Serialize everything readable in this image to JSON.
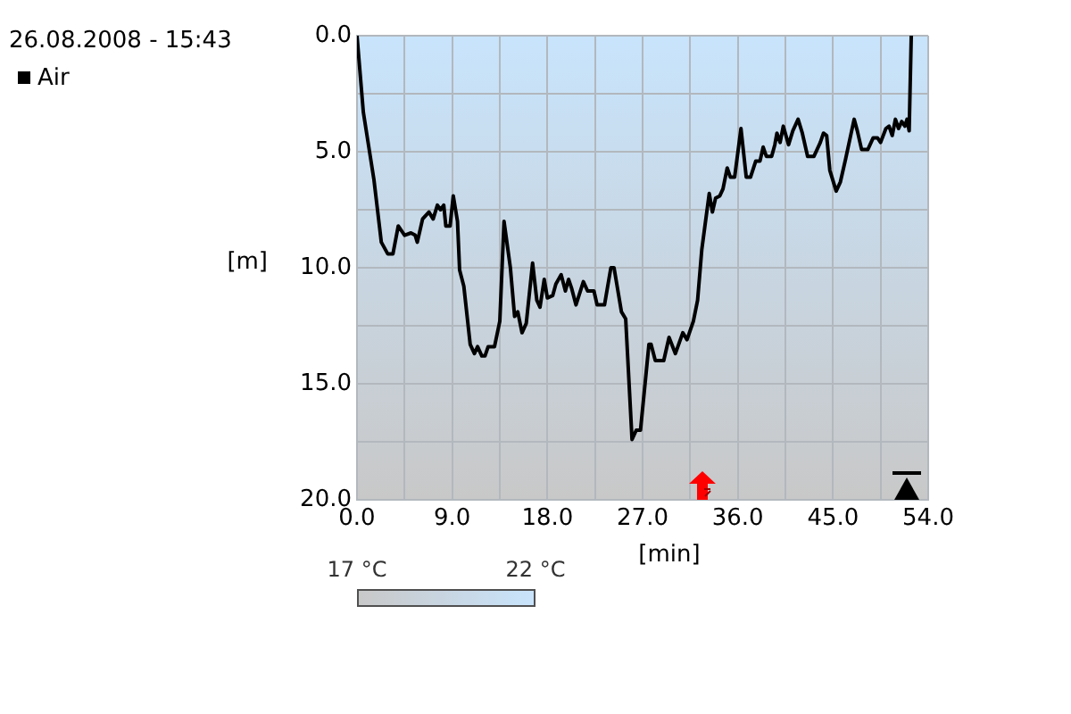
{
  "chart_data": {
    "type": "line",
    "title": "26.08.2008 - 15:43",
    "xlabel": "[min]",
    "ylabel": "[m]",
    "x": [
      0.0,
      0.6,
      1.6,
      2.3,
      2.9,
      3.4,
      3.9,
      4.5,
      5.1,
      5.5,
      5.7,
      6.2,
      6.8,
      7.2,
      7.6,
      7.9,
      8.2,
      8.4,
      8.8,
      9.1,
      9.5,
      9.7,
      10.1,
      10.7,
      11.1,
      11.4,
      11.8,
      12.1,
      12.4,
      13.0,
      13.5,
      13.9,
      14.5,
      14.9,
      15.2,
      15.6,
      16.0,
      16.6,
      17.0,
      17.3,
      17.7,
      18.0,
      18.5,
      18.8,
      19.3,
      19.7,
      20.0,
      20.3,
      20.7,
      21.4,
      21.8,
      22.4,
      22.7,
      23.4,
      24.0,
      24.3,
      25.0,
      25.4,
      26.0,
      26.4,
      26.8,
      27.6,
      27.8,
      28.2,
      29.0,
      29.5,
      30.1,
      30.8,
      31.2,
      31.8,
      32.2,
      32.6,
      33.3,
      33.6,
      33.9,
      34.3,
      34.6,
      35.0,
      35.3,
      35.7,
      36.3,
      36.8,
      37.2,
      37.7,
      38.1,
      38.4,
      38.7,
      39.2,
      39.5,
      39.7,
      40.0,
      40.3,
      40.8,
      41.2,
      41.7,
      42.1,
      42.6,
      43.2,
      43.8,
      44.1,
      44.4,
      44.7,
      45.3,
      45.7,
      46.2,
      47.0,
      47.3,
      47.7,
      48.3,
      48.8,
      49.2,
      49.5,
      50.0,
      50.3,
      50.6,
      50.9,
      51.2,
      51.5,
      51.8,
      52.0,
      52.2,
      52.4
    ],
    "series": [
      {
        "name": "Air",
        "color": "#000000",
        "values": [
          0.0,
          3.3,
          6.2,
          8.9,
          9.4,
          9.4,
          8.2,
          8.6,
          8.5,
          8.6,
          8.9,
          7.9,
          7.6,
          7.9,
          7.3,
          7.5,
          7.3,
          8.2,
          8.2,
          6.9,
          8.0,
          10.1,
          10.8,
          13.3,
          13.7,
          13.4,
          13.8,
          13.8,
          13.4,
          13.4,
          12.3,
          8.0,
          10.0,
          12.1,
          11.9,
          12.8,
          12.4,
          9.8,
          11.4,
          11.7,
          10.5,
          11.3,
          11.2,
          10.7,
          10.3,
          11.0,
          10.5,
          10.9,
          11.6,
          10.6,
          11.0,
          11.0,
          11.6,
          11.6,
          10.0,
          10.0,
          11.9,
          12.2,
          17.4,
          17.0,
          17.0,
          13.3,
          13.3,
          14.0,
          14.0,
          13.0,
          13.7,
          12.8,
          13.1,
          12.3,
          11.4,
          9.2,
          6.8,
          7.6,
          7.0,
          6.9,
          6.6,
          5.7,
          6.1,
          6.1,
          4.0,
          6.1,
          6.1,
          5.4,
          5.4,
          4.8,
          5.2,
          5.2,
          4.7,
          4.2,
          4.6,
          3.9,
          4.7,
          4.1,
          3.6,
          4.2,
          5.2,
          5.2,
          4.6,
          4.2,
          4.3,
          5.8,
          6.7,
          6.3,
          5.3,
          3.6,
          4.1,
          4.9,
          4.9,
          4.4,
          4.4,
          4.6,
          4.0,
          3.9,
          4.3,
          3.6,
          4.0,
          3.7,
          3.9,
          3.6,
          4.1,
          0.0
        ]
      }
    ],
    "xlim": [
      0,
      54
    ],
    "xticks": [
      {
        "value": 0,
        "label": "0.0"
      },
      {
        "value": 4.5,
        "label": null
      },
      {
        "value": 9,
        "label": "9.0"
      },
      {
        "value": 13.5,
        "label": null
      },
      {
        "value": 18,
        "label": "18.0"
      },
      {
        "value": 22.5,
        "label": null
      },
      {
        "value": 27,
        "label": "27.0"
      },
      {
        "value": 31.5,
        "label": null
      },
      {
        "value": 36,
        "label": "36.0"
      },
      {
        "value": 40.5,
        "label": null
      },
      {
        "value": 45,
        "label": "45.0"
      },
      {
        "value": 49.5,
        "label": null
      },
      {
        "value": 54,
        "label": "54.0"
      }
    ],
    "ylim": [
      20,
      0
    ],
    "yticks": [
      {
        "value": 0,
        "label": "0.0"
      },
      {
        "value": 2.5,
        "label": null
      },
      {
        "value": 5,
        "label": "5.0"
      },
      {
        "value": 7.5,
        "label": null
      },
      {
        "value": 10,
        "label": "10.0"
      },
      {
        "value": 12.5,
        "label": null
      },
      {
        "value": 15,
        "label": "15.0"
      },
      {
        "value": 17.5,
        "label": null
      },
      {
        "value": 20,
        "label": "20.0"
      }
    ],
    "clim": [
      17,
      22
    ],
    "cticks": [
      {
        "value": 17,
        "label": "17 °C"
      },
      {
        "value": 22,
        "label": "22 °C"
      }
    ],
    "grid": true,
    "legend": "top left"
  }
}
